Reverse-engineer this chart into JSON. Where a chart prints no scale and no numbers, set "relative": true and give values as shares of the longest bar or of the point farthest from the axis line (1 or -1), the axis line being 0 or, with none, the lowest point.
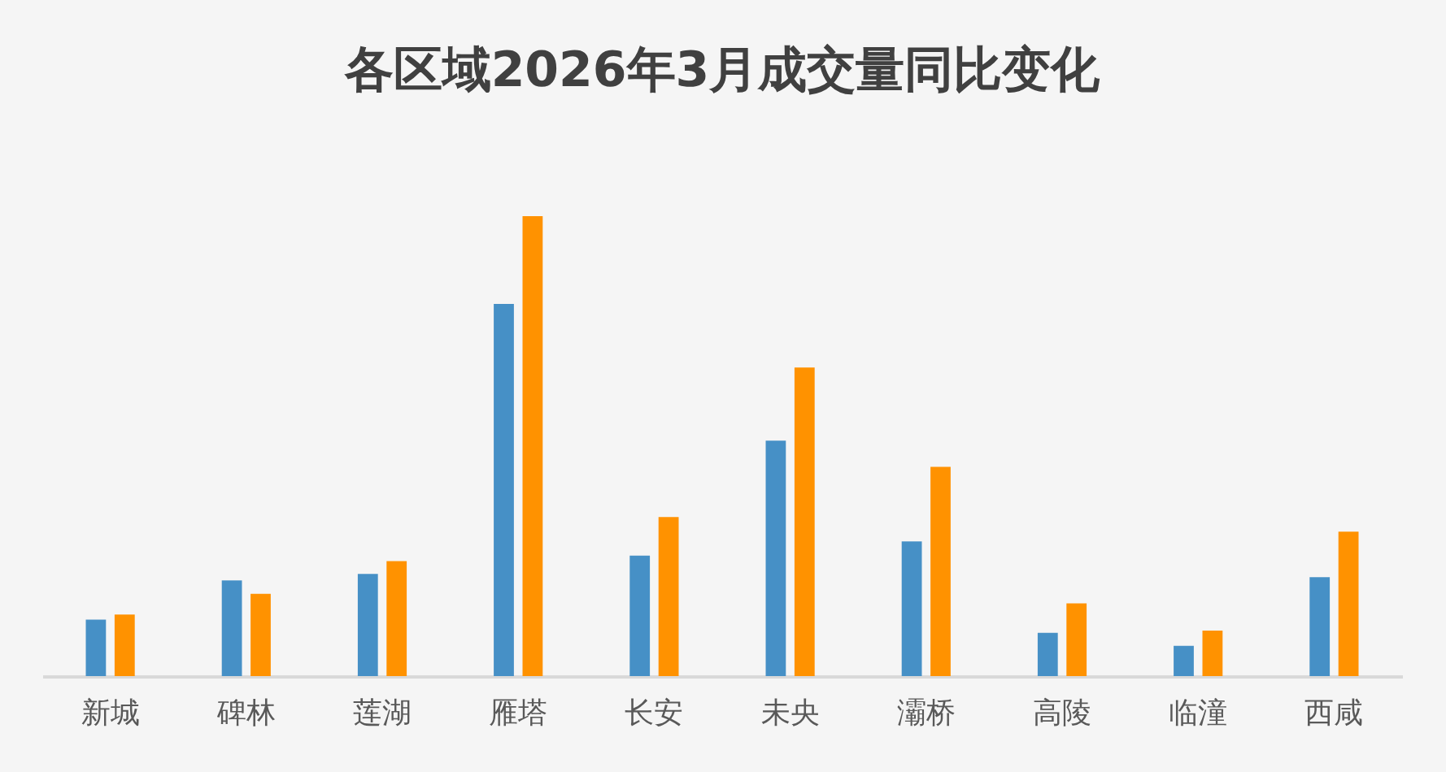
{
  "chart_data": {
    "type": "bar",
    "title": "各区域2026年3月成交量同比变化",
    "categories": [
      "新城",
      "碑林",
      "莲湖",
      "雁塔",
      "长安",
      "未央",
      "灞桥",
      "高陵",
      "临潼",
      "西咸"
    ],
    "relative": true,
    "series": [
      {
        "color": "#4690c6",
        "values": [
          0.123,
          0.208,
          0.222,
          0.809,
          0.262,
          0.512,
          0.293,
          0.094,
          0.066,
          0.215
        ]
      },
      {
        "color": "#ff9200",
        "values": [
          0.134,
          0.179,
          0.25,
          1,
          0.346,
          0.671,
          0.455,
          0.158,
          0.099,
          0.314
        ]
      }
    ]
  }
}
